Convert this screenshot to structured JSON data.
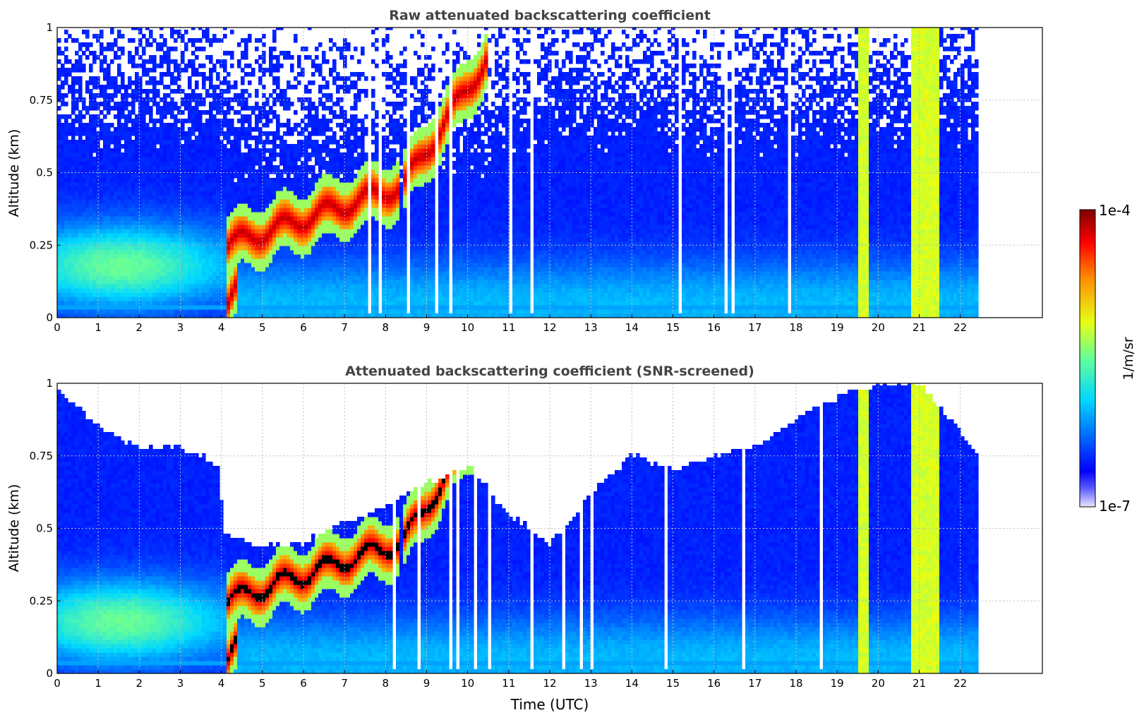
{
  "chart_data": [
    {
      "type": "heatmap",
      "title": "Raw attenuated backscattering coefficient",
      "xlabel": "",
      "ylabel": "Altitude (km)",
      "xlim": [
        0,
        24
      ],
      "ylim": [
        0,
        1
      ],
      "x_ticks": [
        "0",
        "1",
        "2",
        "3",
        "4",
        "5",
        "6",
        "7",
        "8",
        "9",
        "10",
        "11",
        "12",
        "13",
        "14",
        "15",
        "16",
        "17",
        "18",
        "19",
        "20",
        "21",
        "22"
      ],
      "y_ticks": [
        "0",
        "0.25",
        "0.5",
        "0.75",
        "1"
      ],
      "grid": true,
      "data_end_hour": 22.45,
      "color_scale": "log",
      "features": [
        {
          "x_start": 4.1,
          "x_end": 8.3,
          "y_bottom": 0.25,
          "y_top": 0.45,
          "level": "high"
        },
        {
          "x_start": 8.4,
          "x_end": 10.5,
          "y_bottom": 0.45,
          "y_top": 0.9,
          "level": "high"
        },
        {
          "x_start": 4.1,
          "x_end": 4.4,
          "y_bottom": 0.04,
          "y_top": 0.1,
          "level": "high"
        },
        {
          "x_start": 19.55,
          "x_end": 19.75,
          "y_bottom": 0.0,
          "y_top": 1.0,
          "level": "medium-high"
        },
        {
          "x_start": 20.8,
          "x_end": 21.45,
          "y_bottom": 0.0,
          "y_top": 1.0,
          "level": "medium-high"
        }
      ]
    },
    {
      "type": "heatmap",
      "title": "Attenuated backscattering coefficient (SNR-screened)",
      "xlabel": "Time (UTC)",
      "ylabel": "Altitude (km)",
      "xlim": [
        0,
        24
      ],
      "ylim": [
        0,
        1
      ],
      "x_ticks": [
        "0",
        "1",
        "2",
        "3",
        "4",
        "5",
        "6",
        "7",
        "8",
        "9",
        "10",
        "11",
        "12",
        "13",
        "14",
        "15",
        "16",
        "17",
        "18",
        "19",
        "20",
        "21",
        "22"
      ],
      "y_ticks": [
        "0",
        "0.25",
        "0.5",
        "0.75",
        "1"
      ],
      "grid": true,
      "data_end_hour": 22.45,
      "color_scale": "log",
      "saturated_color": "#000000",
      "screened_top_profile": [
        {
          "x": 0.0,
          "y": 0.98
        },
        {
          "x": 1.0,
          "y": 0.85
        },
        {
          "x": 2.0,
          "y": 0.78
        },
        {
          "x": 3.0,
          "y": 0.78
        },
        {
          "x": 3.9,
          "y": 0.72
        },
        {
          "x": 4.1,
          "y": 0.47
        },
        {
          "x": 5.0,
          "y": 0.44
        },
        {
          "x": 6.0,
          "y": 0.45
        },
        {
          "x": 7.0,
          "y": 0.52
        },
        {
          "x": 8.0,
          "y": 0.58
        },
        {
          "x": 9.0,
          "y": 0.65
        },
        {
          "x": 10.0,
          "y": 0.72
        },
        {
          "x": 11.0,
          "y": 0.55
        },
        {
          "x": 12.0,
          "y": 0.45
        },
        {
          "x": 13.0,
          "y": 0.62
        },
        {
          "x": 14.0,
          "y": 0.75
        },
        {
          "x": 15.0,
          "y": 0.7
        },
        {
          "x": 16.0,
          "y": 0.75
        },
        {
          "x": 17.0,
          "y": 0.78
        },
        {
          "x": 18.0,
          "y": 0.88
        },
        {
          "x": 19.0,
          "y": 0.95
        },
        {
          "x": 20.0,
          "y": 1.0
        },
        {
          "x": 21.0,
          "y": 1.0
        },
        {
          "x": 22.45,
          "y": 0.75
        }
      ]
    }
  ],
  "colorbar": {
    "label": "1/m/sr",
    "max_label": "1e-4",
    "min_label": "1e-7",
    "scale": "log"
  }
}
